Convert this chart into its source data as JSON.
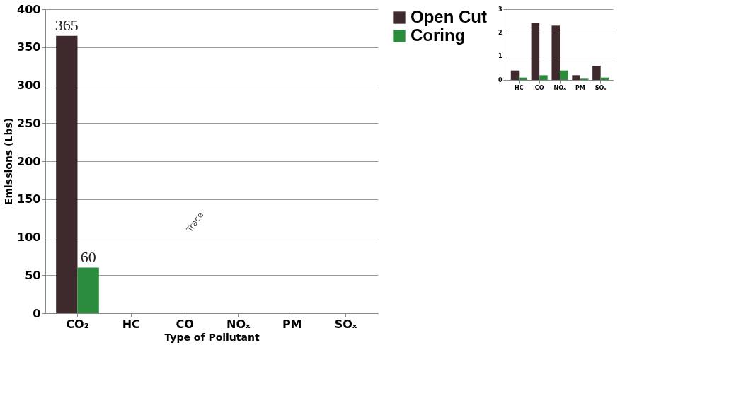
{
  "chart_data": [
    {
      "type": "bar",
      "categories": [
        "CO₂",
        "HC",
        "CO",
        "NOₓ",
        "PM",
        "SOₓ"
      ],
      "xlabel": "Type of Pollutant",
      "ylabel": "Emissions (Lbs)",
      "ylim": [
        0,
        400
      ],
      "yticks": [
        0,
        50,
        100,
        150,
        200,
        250,
        300,
        350,
        400
      ],
      "grid": "y",
      "legend": "right",
      "annotations": [
        "Trace"
      ],
      "series": [
        {
          "name": "Open Cut",
          "color": "#3e2a2c",
          "values": [
            365,
            null,
            null,
            null,
            null,
            null
          ],
          "value_labels": [
            "365",
            null,
            null,
            null,
            null,
            null
          ]
        },
        {
          "name": "Coring",
          "color": "#2a8c3c",
          "values": [
            60,
            null,
            null,
            null,
            null,
            null
          ],
          "value_labels": [
            "60",
            null,
            null,
            null,
            null,
            null
          ]
        }
      ]
    },
    {
      "type": "bar",
      "categories": [
        "HC",
        "CO",
        "NOₓ",
        "PM",
        "SOₓ"
      ],
      "ylim": [
        0,
        3
      ],
      "yticks": [
        0,
        1,
        2,
        3
      ],
      "grid": "y",
      "series": [
        {
          "color": "#3e2a2c",
          "values": [
            0.4,
            2.4,
            2.3,
            0.2,
            0.6
          ]
        },
        {
          "color": "#2a8c3c",
          "values": [
            0.1,
            0.2,
            0.4,
            0.05,
            0.1
          ]
        }
      ]
    }
  ]
}
